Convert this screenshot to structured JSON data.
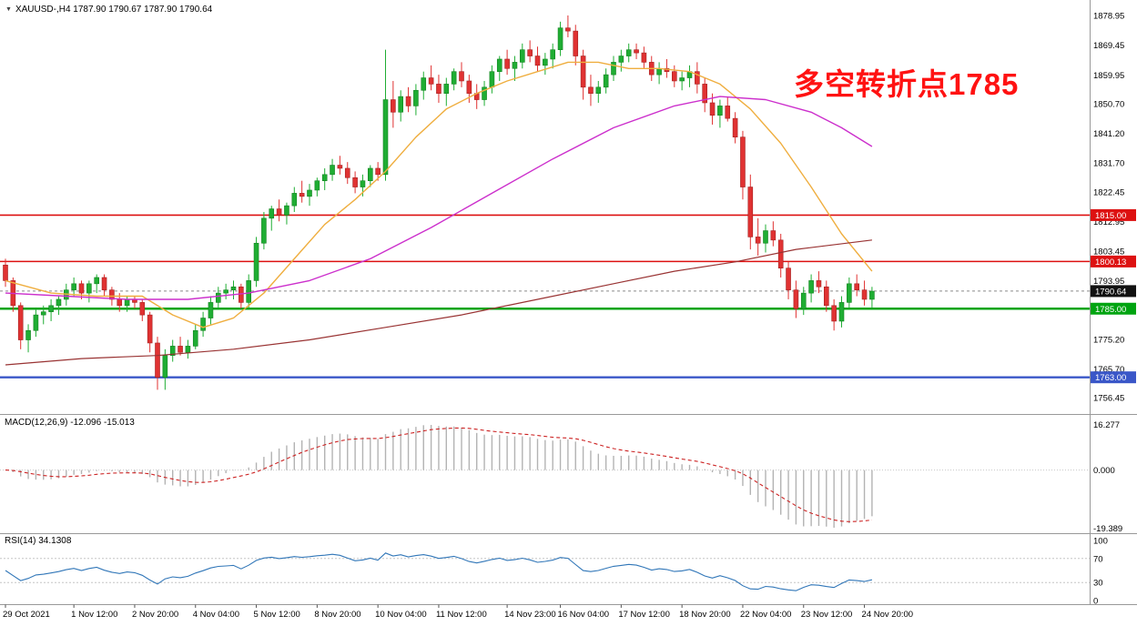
{
  "header": {
    "symbol_ohlc": "XAUUSD-,H4 1787.90 1790.67 1787.90 1790.64"
  },
  "annotation": {
    "text": "多空转折点1785",
    "color": "#ff1212"
  },
  "panels": {
    "macd": {
      "label": "MACD(12,26,9) -12.096 -15.013",
      "axis_labels": [
        "16.277",
        "0.000",
        "-19.389"
      ]
    },
    "rsi": {
      "label": "RSI(14) 34.1308",
      "axis_labels": [
        "100",
        "70",
        "30",
        "0"
      ],
      "axis_values": [
        100,
        70,
        30,
        0
      ],
      "levels": [
        70,
        30
      ]
    }
  },
  "price_axis": {
    "max": 1882.2,
    "min": 1752.7,
    "labels": [
      1878.95,
      1869.45,
      1859.95,
      1850.7,
      1841.2,
      1831.7,
      1822.45,
      1812.95,
      1803.45,
      1793.95,
      1784.45,
      1775.2,
      1765.7,
      1756.45
    ]
  },
  "price_tags": [
    {
      "label": "1815.00",
      "price": 1815.0,
      "bg": "#dd1111"
    },
    {
      "label": "1800.13",
      "price": 1800.13,
      "bg": "#dd1111"
    },
    {
      "label": "1790.64",
      "price": 1790.64,
      "bg": "#111111"
    },
    {
      "label": "1785.00",
      "price": 1785.0,
      "bg": "#00a411"
    },
    {
      "label": "1763.00",
      "price": 1763.0,
      "bg": "#3a57c8"
    }
  ],
  "hlines": [
    {
      "price": 1815.0,
      "color": "#dd1111",
      "width": 1.6
    },
    {
      "price": 1800.13,
      "color": "#dd1111",
      "width": 1.6
    },
    {
      "price": 1785.0,
      "color": "#00a411",
      "width": 2.4
    },
    {
      "price": 1763.0,
      "color": "#3a57c8",
      "width": 2.4
    },
    {
      "price": 1790.64,
      "color": "#8a8a8a",
      "width": 1,
      "dash": "3,3"
    }
  ],
  "time_axis": [
    {
      "label": "29 Oct 2021",
      "index": 0
    },
    {
      "label": "1 Nov 12:00",
      "index": 9
    },
    {
      "label": "2 Nov 20:00",
      "index": 17
    },
    {
      "label": "4 Nov 04:00",
      "index": 25
    },
    {
      "label": "5 Nov 12:00",
      "index": 33
    },
    {
      "label": "8 Nov 20:00",
      "index": 41
    },
    {
      "label": "10 Nov 04:00",
      "index": 49
    },
    {
      "label": "11 Nov 12:00",
      "index": 57
    },
    {
      "label": "14 Nov 23:00",
      "index": 66
    },
    {
      "label": "16 Nov 04:00",
      "index": 73
    },
    {
      "label": "17 Nov 12:00",
      "index": 81
    },
    {
      "label": "18 Nov 20:00",
      "index": 89
    },
    {
      "label": "22 Nov 04:00",
      "index": 97
    },
    {
      "label": "23 Nov 12:00",
      "index": 105
    },
    {
      "label": "24 Nov 20:00",
      "index": 113
    }
  ],
  "chart_data": {
    "type": "candlestick",
    "symbol": "XAUUSD-",
    "timeframe": "H4",
    "current_bar": {
      "open": 1787.9,
      "high": 1790.67,
      "low": 1787.9,
      "close": 1790.64
    },
    "ylim": [
      1752.7,
      1882.2
    ],
    "ohlc": [
      [
        1799,
        1801,
        1792,
        1794
      ],
      [
        1794,
        1795,
        1784,
        1786
      ],
      [
        1786,
        1787,
        1772,
        1775
      ],
      [
        1775,
        1780,
        1771,
        1778
      ],
      [
        1778,
        1785,
        1776,
        1783
      ],
      [
        1783,
        1786,
        1780,
        1784
      ],
      [
        1784,
        1788,
        1781,
        1786
      ],
      [
        1786,
        1789,
        1783,
        1788
      ],
      [
        1788,
        1793,
        1786,
        1791
      ],
      [
        1791,
        1795,
        1789,
        1793
      ],
      [
        1793,
        1794,
        1788,
        1790
      ],
      [
        1790,
        1794,
        1787,
        1793
      ],
      [
        1793,
        1796,
        1790,
        1795
      ],
      [
        1795,
        1796,
        1789,
        1791
      ],
      [
        1791,
        1792,
        1786,
        1788
      ],
      [
        1788,
        1790,
        1784,
        1786
      ],
      [
        1786,
        1789,
        1784,
        1788
      ],
      [
        1788,
        1789,
        1785,
        1787
      ],
      [
        1787,
        1788,
        1781,
        1783
      ],
      [
        1783,
        1784,
        1771,
        1774
      ],
      [
        1774,
        1776,
        1759,
        1763
      ],
      [
        1763,
        1772,
        1759,
        1770
      ],
      [
        1770,
        1775,
        1768,
        1773
      ],
      [
        1773,
        1776,
        1770,
        1771
      ],
      [
        1771,
        1775,
        1769,
        1773
      ],
      [
        1773,
        1780,
        1772,
        1778
      ],
      [
        1778,
        1784,
        1776,
        1782
      ],
      [
        1782,
        1789,
        1780,
        1787
      ],
      [
        1787,
        1792,
        1785,
        1790
      ],
      [
        1790,
        1793,
        1788,
        1791
      ],
      [
        1791,
        1794,
        1788,
        1792
      ],
      [
        1792,
        1793,
        1785,
        1787
      ],
      [
        1787,
        1796,
        1785,
        1794
      ],
      [
        1794,
        1808,
        1792,
        1806
      ],
      [
        1806,
        1816,
        1804,
        1814
      ],
      [
        1814,
        1818,
        1810,
        1817
      ],
      [
        1817,
        1820,
        1813,
        1815
      ],
      [
        1815,
        1819,
        1812,
        1818
      ],
      [
        1818,
        1824,
        1816,
        1822
      ],
      [
        1822,
        1826,
        1819,
        1821
      ],
      [
        1821,
        1825,
        1818,
        1823
      ],
      [
        1823,
        1827,
        1821,
        1826
      ],
      [
        1826,
        1830,
        1823,
        1828
      ],
      [
        1828,
        1833,
        1826,
        1831
      ],
      [
        1831,
        1834,
        1828,
        1830
      ],
      [
        1830,
        1832,
        1825,
        1827
      ],
      [
        1827,
        1829,
        1822,
        1824
      ],
      [
        1824,
        1828,
        1821,
        1826
      ],
      [
        1826,
        1831,
        1824,
        1830
      ],
      [
        1830,
        1832,
        1826,
        1828
      ],
      [
        1828,
        1868,
        1826,
        1852
      ],
      [
        1852,
        1858,
        1843,
        1848
      ],
      [
        1848,
        1855,
        1845,
        1853
      ],
      [
        1853,
        1856,
        1848,
        1850
      ],
      [
        1850,
        1857,
        1847,
        1855
      ],
      [
        1855,
        1861,
        1852,
        1859
      ],
      [
        1859,
        1863,
        1855,
        1857
      ],
      [
        1857,
        1860,
        1851,
        1854
      ],
      [
        1854,
        1859,
        1850,
        1857
      ],
      [
        1857,
        1862,
        1855,
        1861
      ],
      [
        1861,
        1864,
        1856,
        1858
      ],
      [
        1858,
        1860,
        1851,
        1854
      ],
      [
        1854,
        1857,
        1849,
        1852
      ],
      [
        1852,
        1858,
        1850,
        1856
      ],
      [
        1856,
        1863,
        1854,
        1861
      ],
      [
        1861,
        1866,
        1858,
        1865
      ],
      [
        1865,
        1868,
        1860,
        1862
      ],
      [
        1862,
        1866,
        1858,
        1864
      ],
      [
        1864,
        1870,
        1862,
        1868
      ],
      [
        1868,
        1871,
        1864,
        1866
      ],
      [
        1866,
        1869,
        1861,
        1863
      ],
      [
        1863,
        1867,
        1860,
        1865
      ],
      [
        1865,
        1870,
        1862,
        1868
      ],
      [
        1868,
        1877,
        1866,
        1875
      ],
      [
        1875,
        1879,
        1872,
        1874
      ],
      [
        1874,
        1876,
        1863,
        1866
      ],
      [
        1866,
        1868,
        1852,
        1856
      ],
      [
        1856,
        1860,
        1850,
        1854
      ],
      [
        1854,
        1858,
        1851,
        1856
      ],
      [
        1856,
        1862,
        1854,
        1860
      ],
      [
        1860,
        1866,
        1858,
        1864
      ],
      [
        1864,
        1868,
        1861,
        1866
      ],
      [
        1866,
        1870,
        1864,
        1868
      ],
      [
        1868,
        1870,
        1865,
        1867
      ],
      [
        1867,
        1869,
        1862,
        1864
      ],
      [
        1864,
        1866,
        1858,
        1860
      ],
      [
        1860,
        1864,
        1857,
        1862
      ],
      [
        1862,
        1865,
        1859,
        1861
      ],
      [
        1861,
        1863,
        1856,
        1858
      ],
      [
        1858,
        1861,
        1855,
        1859
      ],
      [
        1859,
        1863,
        1856,
        1861
      ],
      [
        1861,
        1864,
        1854,
        1857
      ],
      [
        1857,
        1859,
        1848,
        1851
      ],
      [
        1851,
        1854,
        1844,
        1847
      ],
      [
        1847,
        1852,
        1843,
        1850
      ],
      [
        1850,
        1853,
        1845,
        1846
      ],
      [
        1846,
        1848,
        1838,
        1840
      ],
      [
        1840,
        1842,
        1820,
        1824
      ],
      [
        1824,
        1828,
        1804,
        1808
      ],
      [
        1808,
        1814,
        1802,
        1806
      ],
      [
        1806,
        1812,
        1803,
        1810
      ],
      [
        1810,
        1813,
        1805,
        1807
      ],
      [
        1807,
        1809,
        1795,
        1798
      ],
      [
        1798,
        1800,
        1788,
        1791
      ],
      [
        1791,
        1794,
        1782,
        1785
      ],
      [
        1785,
        1792,
        1783,
        1790
      ],
      [
        1790,
        1796,
        1787,
        1794
      ],
      [
        1794,
        1797,
        1790,
        1792
      ],
      [
        1792,
        1794,
        1784,
        1786
      ],
      [
        1786,
        1788,
        1778,
        1781
      ],
      [
        1781,
        1789,
        1779,
        1787
      ],
      [
        1787,
        1795,
        1785,
        1793
      ],
      [
        1793,
        1796,
        1789,
        1791
      ],
      [
        1791,
        1794,
        1786,
        1788
      ],
      [
        1788,
        1792,
        1785,
        1790.6
      ]
    ],
    "ma_lines": [
      {
        "name": "ma-fast-orange",
        "color": "#efae3f",
        "width": 1.4,
        "points": [
          [
            0,
            1794
          ],
          [
            6,
            1790
          ],
          [
            12,
            1789
          ],
          [
            18,
            1789
          ],
          [
            22,
            1783
          ],
          [
            26,
            1779
          ],
          [
            30,
            1782
          ],
          [
            34,
            1790
          ],
          [
            38,
            1801
          ],
          [
            42,
            1812
          ],
          [
            46,
            1820
          ],
          [
            50,
            1829
          ],
          [
            54,
            1840
          ],
          [
            58,
            1849
          ],
          [
            62,
            1854
          ],
          [
            66,
            1858
          ],
          [
            70,
            1861
          ],
          [
            74,
            1864
          ],
          [
            78,
            1864
          ],
          [
            82,
            1862
          ],
          [
            86,
            1862
          ],
          [
            90,
            1861
          ],
          [
            94,
            1857
          ],
          [
            98,
            1849
          ],
          [
            102,
            1838
          ],
          [
            106,
            1824
          ],
          [
            110,
            1809
          ],
          [
            114,
            1797
          ]
        ]
      },
      {
        "name": "ma-mid-magenta",
        "color": "#cc2fcc",
        "width": 1.4,
        "points": [
          [
            0,
            1790
          ],
          [
            8,
            1789
          ],
          [
            16,
            1788
          ],
          [
            24,
            1788
          ],
          [
            32,
            1790
          ],
          [
            40,
            1794
          ],
          [
            48,
            1801
          ],
          [
            56,
            1811
          ],
          [
            64,
            1822
          ],
          [
            72,
            1833
          ],
          [
            80,
            1843
          ],
          [
            88,
            1850
          ],
          [
            94,
            1853
          ],
          [
            100,
            1852
          ],
          [
            106,
            1848
          ],
          [
            110,
            1843
          ],
          [
            114,
            1837
          ]
        ]
      },
      {
        "name": "ma-slow-darkred",
        "color": "#993333",
        "width": 1.2,
        "points": [
          [
            0,
            1767
          ],
          [
            10,
            1769
          ],
          [
            20,
            1770
          ],
          [
            30,
            1772
          ],
          [
            40,
            1775
          ],
          [
            50,
            1779
          ],
          [
            60,
            1783
          ],
          [
            70,
            1788
          ],
          [
            80,
            1793
          ],
          [
            88,
            1797
          ],
          [
            96,
            1800
          ],
          [
            104,
            1804
          ],
          [
            114,
            1807
          ]
        ]
      }
    ],
    "macd": {
      "fast": 12,
      "slow": 26,
      "signal": 9,
      "current_macd": -12.096,
      "current_signal": -15.013
    },
    "rsi": {
      "period": 14,
      "current": 34.1308
    }
  },
  "colors": {
    "background": "#ffffff",
    "candle_up": "#1fad33",
    "candle_up_border": "#12831f",
    "candle_down": "#e03232",
    "candle_down_border": "#a32020",
    "macd_bar": "#b3b3b3",
    "macd_signal": "#cc2222",
    "rsi_line": "#3076b8",
    "separator": "#999999",
    "axis_text": "#000000"
  }
}
